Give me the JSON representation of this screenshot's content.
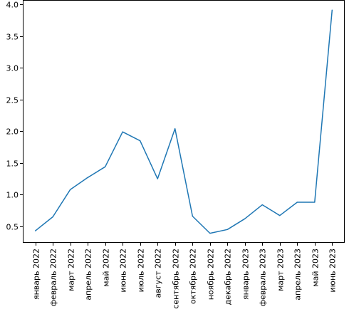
{
  "chart_data": {
    "type": "line",
    "title": "",
    "xlabel": "",
    "ylabel": "",
    "categories": [
      "январь 2022",
      "февраль 2022",
      "март 2022",
      "апрель 2022",
      "май 2022",
      "июнь 2022",
      "июль 2022",
      "август 2022",
      "сентябрь 2022",
      "октябрь 2022",
      "ноябрь 2022",
      "декабрь 2022",
      "январь 2023",
      "февраль 2023",
      "март 2023",
      "апрель 2023",
      "май 2023",
      "июнь 2023"
    ],
    "series": [
      {
        "color": "#1f77b4",
        "values": [
          0.43,
          0.65,
          1.08,
          1.27,
          1.44,
          1.99,
          1.85,
          1.25,
          2.04,
          0.66,
          0.39,
          0.45,
          0.62,
          0.84,
          0.67,
          0.88,
          0.88,
          3.91
        ]
      }
    ],
    "ylim": [
      0.24,
      4.07
    ],
    "yticks": [
      0.5,
      1.0,
      1.5,
      2.0,
      2.5,
      3.0,
      3.5,
      4.0
    ],
    "ytick_labels": [
      "0.5",
      "1.0",
      "1.5",
      "2.0",
      "2.5",
      "3.0",
      "3.5",
      "4.0"
    ],
    "grid": false,
    "legend": "none"
  }
}
